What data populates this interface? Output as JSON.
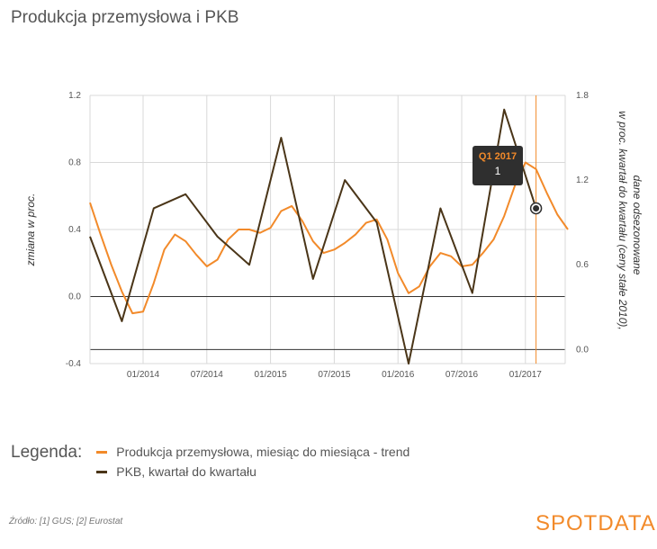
{
  "title": "Produkcja przemysłowa i PKB",
  "legend": {
    "label": "Legenda:",
    "items": [
      {
        "label": "Produkcja przemysłowa, miesiąc do miesiąca - trend",
        "color": "#f28a2a"
      },
      {
        "label": "PKB, kwartał do kwartału",
        "color": "#4a3518"
      }
    ]
  },
  "source": "Źródło: [1] GUS; [2] Eurostat",
  "brand": "SPOTDATA",
  "tooltip": {
    "label": "Q1 2017",
    "value": "1"
  },
  "chart_data": {
    "type": "line",
    "x_ticks": [
      "01/2014",
      "07/2014",
      "01/2015",
      "07/2015",
      "01/2016",
      "07/2016",
      "01/2017"
    ],
    "y_left": {
      "label": "zmiana w proc.",
      "ticks": [
        "-0.4",
        "0.0",
        "0.4",
        "0.8",
        "1.2"
      ],
      "range": [
        -0.4,
        1.2
      ]
    },
    "y_right": {
      "label_line1": "w proc. kwartał do kwartału (ceny stałe 2010),",
      "label_line2": "dane odsezonowane",
      "ticks": [
        "0.0",
        "0.6",
        "1.2",
        "1.8"
      ],
      "range": [
        -0.1,
        1.8
      ]
    },
    "series": [
      {
        "name": "Produkcja przemysłowa, miesiąc do miesiąca - trend",
        "axis": "left",
        "color": "#f28a2a",
        "x": [
          "2013-08",
          "2013-09",
          "2013-10",
          "2013-11",
          "2013-12",
          "2014-01",
          "2014-02",
          "2014-03",
          "2014-04",
          "2014-05",
          "2014-06",
          "2014-07",
          "2014-08",
          "2014-09",
          "2014-10",
          "2014-11",
          "2014-12",
          "2015-01",
          "2015-02",
          "2015-03",
          "2015-04",
          "2015-05",
          "2015-06",
          "2015-07",
          "2015-08",
          "2015-09",
          "2015-10",
          "2015-11",
          "2015-12",
          "2016-01",
          "2016-02",
          "2016-03",
          "2016-04",
          "2016-05",
          "2016-06",
          "2016-07",
          "2016-08",
          "2016-09",
          "2016-10",
          "2016-11",
          "2016-12",
          "2017-01",
          "2017-02",
          "2017-03",
          "2017-04",
          "2017-05"
        ],
        "values": [
          0.56,
          0.37,
          0.19,
          0.03,
          -0.1,
          -0.09,
          0.08,
          0.28,
          0.37,
          0.33,
          0.25,
          0.18,
          0.22,
          0.34,
          0.4,
          0.4,
          0.38,
          0.41,
          0.51,
          0.54,
          0.45,
          0.33,
          0.26,
          0.28,
          0.32,
          0.37,
          0.44,
          0.46,
          0.34,
          0.14,
          0.02,
          0.06,
          0.18,
          0.26,
          0.24,
          0.18,
          0.19,
          0.26,
          0.34,
          0.48,
          0.66,
          0.8,
          0.76,
          0.62,
          0.49,
          0.4
        ]
      },
      {
        "name": "PKB, kwartał do kwartału",
        "axis": "right",
        "color": "#4a3518",
        "x": [
          "2013-Q3",
          "2013-Q4",
          "2014-Q1",
          "2014-Q2",
          "2014-Q3",
          "2014-Q4",
          "2015-Q1",
          "2015-Q2",
          "2015-Q3",
          "2015-Q4",
          "2016-Q1",
          "2016-Q2",
          "2016-Q3",
          "2016-Q4",
          "2017-Q1"
        ],
        "values": [
          0.8,
          0.2,
          1.0,
          1.1,
          0.8,
          0.6,
          1.5,
          0.5,
          1.2,
          0.9,
          -0.1,
          1.0,
          0.4,
          1.7,
          1.0
        ]
      }
    ],
    "highlight": {
      "x": "2017-Q1",
      "value": 1.0
    }
  }
}
